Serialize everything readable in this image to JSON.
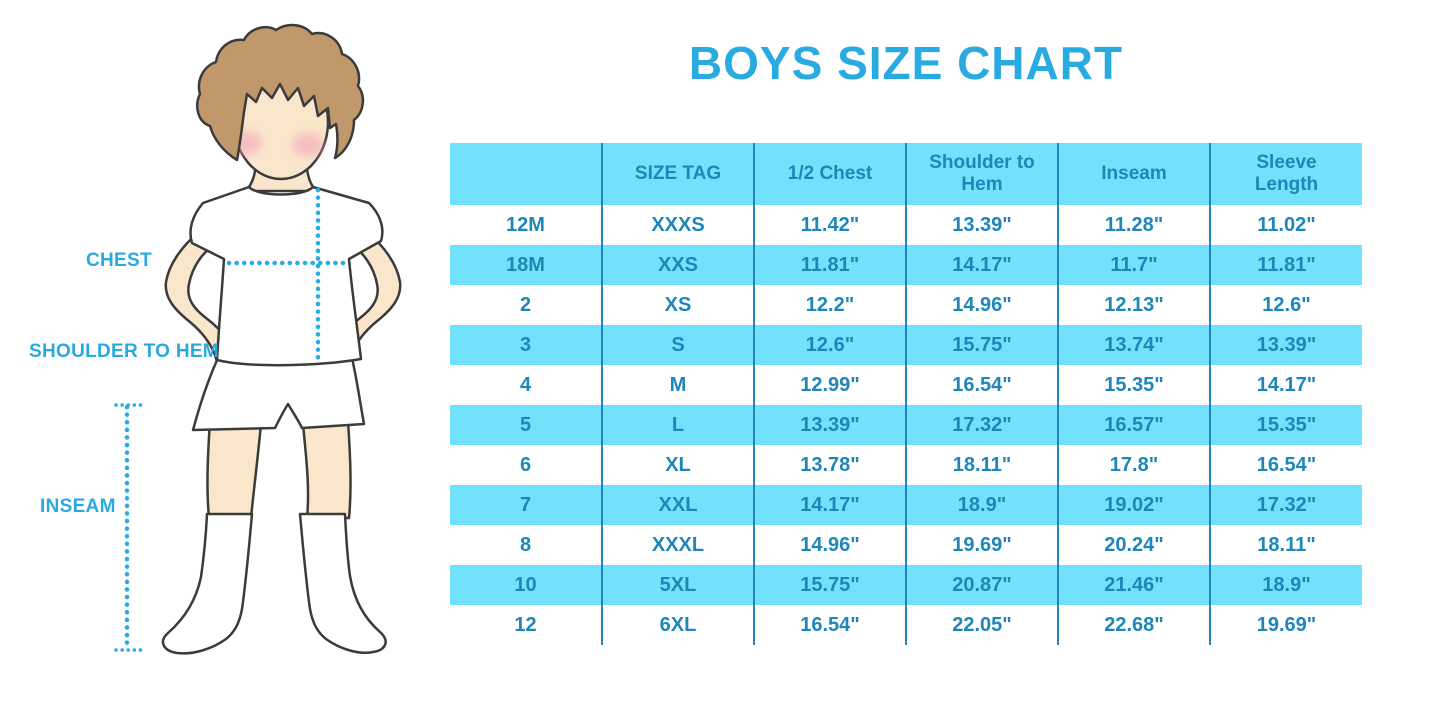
{
  "title": "BOYS SIZE CHART",
  "figure": {
    "chest_label": "CHEST",
    "shoulder_to_hem_label": "SHOULDER TO HEM",
    "inseam_label": "INSEAM",
    "description": "Outline illustration of a boy with hands on hips wearing a white t-shirt, white shorts and white knee socks, with dotted measurement guide lines for chest, shoulder-to-hem and inseam"
  },
  "colors": {
    "title_blue": "#29ABE2",
    "table_text_blue": "#1F87B8",
    "stripe_blue": "#72E1FB",
    "label_blue": "#29A9E0",
    "dotted_line_blue": "#29ACE3",
    "skin": "#FAE7CB",
    "hair": "#C0986B",
    "cheek_pink": "#F2A4B8",
    "outline": "#3B3B3B"
  },
  "chart_data": {
    "type": "table",
    "title": "BOYS SIZE CHART",
    "columns": [
      "",
      "SIZE TAG",
      "1/2 Chest",
      "Shoulder to Hem",
      "Inseam",
      "Sleeve Length"
    ],
    "rows": [
      [
        "12M",
        "XXXS",
        "11.42\"",
        "13.39\"",
        "11.28\"",
        "11.02\""
      ],
      [
        "18M",
        "XXS",
        "11.81\"",
        "14.17\"",
        "11.7\"",
        "11.81\""
      ],
      [
        "2",
        "XS",
        "12.2\"",
        "14.96\"",
        "12.13\"",
        "12.6\""
      ],
      [
        "3",
        "S",
        "12.6\"",
        "15.75\"",
        "13.74\"",
        "13.39\""
      ],
      [
        "4",
        "M",
        "12.99\"",
        "16.54\"",
        "15.35\"",
        "14.17\""
      ],
      [
        "5",
        "L",
        "13.39\"",
        "17.32\"",
        "16.57\"",
        "15.35\""
      ],
      [
        "6",
        "XL",
        "13.78\"",
        "18.11\"",
        "17.8\"",
        "16.54\""
      ],
      [
        "7",
        "XXL",
        "14.17\"",
        "18.9\"",
        "19.02\"",
        "17.32\""
      ],
      [
        "8",
        "XXXL",
        "14.96\"",
        "19.69\"",
        "20.24\"",
        "18.11\""
      ],
      [
        "10",
        "5XL",
        "15.75\"",
        "20.87\"",
        "21.46\"",
        "18.9\""
      ],
      [
        "12",
        "6XL",
        "16.54\"",
        "22.05\"",
        "22.68\"",
        "19.69\""
      ]
    ]
  }
}
